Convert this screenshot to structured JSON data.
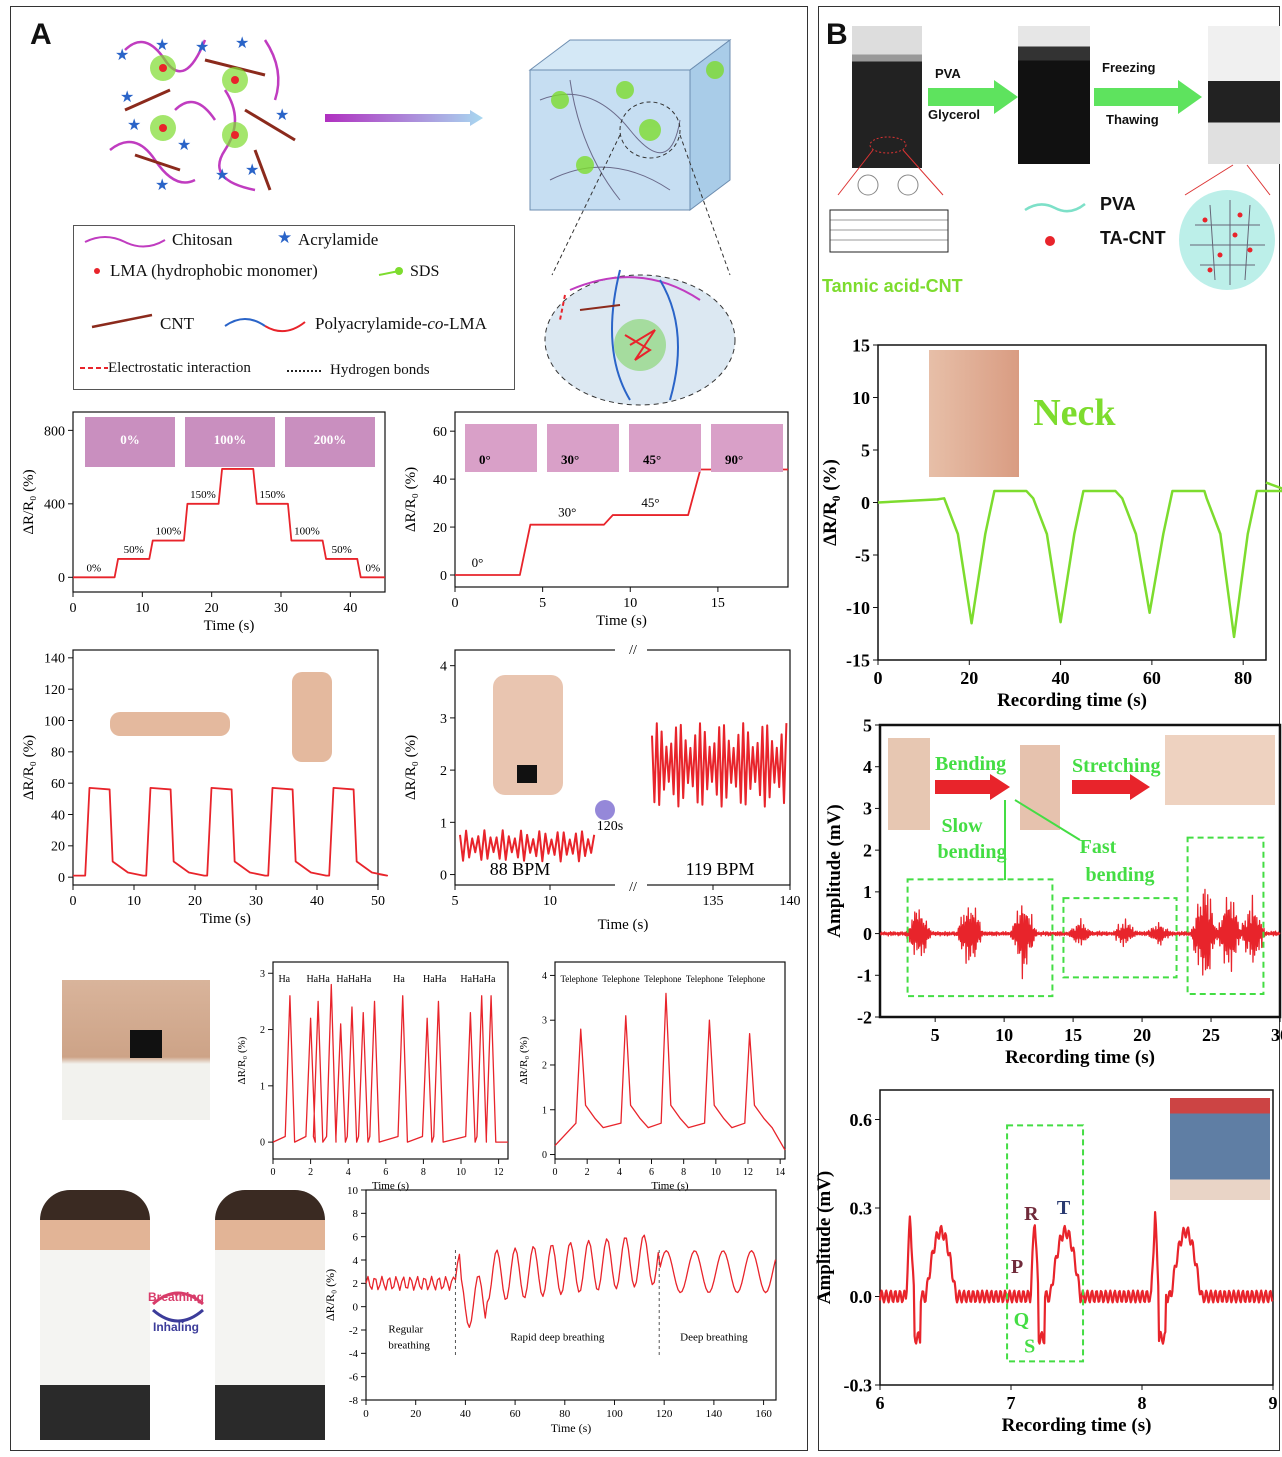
{
  "panelA": {
    "label": "A",
    "legend": {
      "chitosan": "Chitosan",
      "acrylamide": "Acrylamide",
      "lma": "LMA (hydrophobic monomer)",
      "sds": "SDS",
      "cnt": "CNT",
      "pam_lma_pre": "Polyacrylamide-",
      "pam_lma_co": "co",
      "pam_lma_post": "-LMA",
      "electrostatic": "Electrostatic interaction",
      "hbonds": "Hydrogen bonds"
    },
    "charts": {
      "strain": {
        "ylabel": "ΔR/R₀ (%)",
        "xlabel": "Time (s)",
        "xticks": [
          "0",
          "10",
          "20",
          "30",
          "40"
        ],
        "yticks": [
          "0",
          "400",
          "800"
        ],
        "insets": [
          "0%",
          "100%",
          "200%"
        ],
        "step_labels": [
          "0%",
          "50%",
          "100%",
          "150%",
          "200%",
          "150%",
          "100%",
          "50%",
          "0%"
        ],
        "steps": [
          {
            "t0": 0,
            "t1": 6,
            "v": 0
          },
          {
            "t0": 6.5,
            "t1": 11,
            "v": 100
          },
          {
            "t0": 11.5,
            "t1": 16,
            "v": 200
          },
          {
            "t0": 16.5,
            "t1": 21,
            "v": 400
          },
          {
            "t0": 21.5,
            "t1": 26,
            "v": 590
          },
          {
            "t0": 26.5,
            "t1": 31,
            "v": 400
          },
          {
            "t0": 31.5,
            "t1": 36,
            "v": 200
          },
          {
            "t0": 36.5,
            "t1": 41,
            "v": 100
          },
          {
            "t0": 41.5,
            "t1": 45,
            "v": 0
          }
        ],
        "xlim": [
          0,
          45
        ],
        "ylim": [
          -80,
          900
        ]
      },
      "finger": {
        "ylabel": "ΔR/R₀ (%)",
        "xlabel": "Time (s)",
        "xticks": [
          "0",
          "5",
          "10",
          "15"
        ],
        "yticks": [
          "0",
          "20",
          "40",
          "60"
        ],
        "insets": [
          "0°",
          "30°",
          "45°",
          "90°"
        ],
        "angle_labels": [
          "0°",
          "30°",
          "45°",
          "90°"
        ],
        "steps": [
          {
            "t0": 0,
            "t1": 3.7,
            "v": 0
          },
          {
            "t0": 4.3,
            "t1": 8.5,
            "v": 21
          },
          {
            "t0": 9,
            "t1": 13.3,
            "v": 25
          },
          {
            "t0": 14,
            "t1": 19,
            "v": 44
          }
        ],
        "xlim": [
          0,
          19
        ],
        "ylim": [
          -5,
          68
        ]
      },
      "elbow": {
        "ylabel": "ΔR/R₀ (%)",
        "xlabel": "Time (s)",
        "xticks": [
          "0",
          "10",
          "20",
          "30",
          "40",
          "50"
        ],
        "yticks": [
          "0",
          "20",
          "40",
          "60",
          "80",
          "100",
          "120",
          "140"
        ],
        "pulses": [
          2,
          12,
          22,
          32,
          42
        ],
        "pulse_height": 57,
        "xlim": [
          0,
          50
        ],
        "ylim": [
          -5,
          145
        ]
      },
      "pulse": {
        "ylabel": "ΔR/R₀ (%)",
        "xlabel": "Time (s)",
        "xticks": [
          "5",
          "10",
          "135",
          "140"
        ],
        "yticks": [
          "0",
          "1",
          "2",
          "3",
          "4"
        ],
        "bpm_left": "88 BPM",
        "bpm_right": "119 BPM",
        "gap_label": "120s",
        "left_level": 0.55,
        "left_amp": 0.3,
        "right_level": 2.1,
        "right_amp": 0.8,
        "ylim": [
          -0.2,
          4.3
        ]
      },
      "laugh": {
        "ylabel": "ΔR/R₀ (%)",
        "xlabel": "Time (s)",
        "xticks": [
          "0",
          "2",
          "4",
          "6",
          "8",
          "10",
          "12"
        ],
        "yticks": [
          "0",
          "1",
          "2",
          "3"
        ],
        "words": [
          "Ha",
          "HaHa",
          "HaHaHa",
          "Ha",
          "HaHa",
          "HaHaHa"
        ],
        "peaks": [
          {
            "t": 0.9,
            "v": 2.6
          },
          {
            "t": 2.0,
            "v": 2.2
          },
          {
            "t": 2.4,
            "v": 2.5
          },
          {
            "t": 3.1,
            "v": 2.8
          },
          {
            "t": 3.6,
            "v": 2.1
          },
          {
            "t": 4.2,
            "v": 2.4
          },
          {
            "t": 4.8,
            "v": 2.3
          },
          {
            "t": 5.4,
            "v": 2.5
          },
          {
            "t": 6.9,
            "v": 2.6
          },
          {
            "t": 8.2,
            "v": 2.2
          },
          {
            "t": 8.8,
            "v": 2.5
          },
          {
            "t": 10.5,
            "v": 2.3
          },
          {
            "t": 11.1,
            "v": 2.6
          },
          {
            "t": 11.6,
            "v": 2.6
          }
        ],
        "xlim": [
          0,
          12.5
        ],
        "ylim": [
          -0.3,
          3.2
        ]
      },
      "telephone": {
        "ylabel": "ΔR/R₀ (%)",
        "xlabel": "Time (s)",
        "xticks": [
          "0",
          "2",
          "4",
          "6",
          "8",
          "10",
          "12",
          "14"
        ],
        "yticks": [
          "0",
          "1",
          "2",
          "3",
          "4"
        ],
        "words": [
          "Telephone",
          "Telephone",
          "Telephone",
          "Telephone",
          "Telephone"
        ],
        "peaks": [
          {
            "t": 1.6,
            "v": 2.8
          },
          {
            "t": 4.4,
            "v": 3.1
          },
          {
            "t": 6.9,
            "v": 3.6
          },
          {
            "t": 9.6,
            "v": 3.0
          },
          {
            "t": 12.1,
            "v": 2.7
          }
        ],
        "xlim": [
          0,
          14.3
        ],
        "ylim": [
          -0.1,
          4.3
        ]
      },
      "breath": {
        "ylabel": "ΔR/R₀ (%)",
        "xlabel": "Time (s)",
        "xticks": [
          "0",
          "20",
          "40",
          "60",
          "80",
          "100",
          "120",
          "140",
          "160"
        ],
        "yticks": [
          "-8",
          "-6",
          "-4",
          "-2",
          "0",
          "2",
          "4",
          "6",
          "8",
          "10"
        ],
        "regions": [
          "Regular\nbreathing",
          "Rapid deep breathing",
          "Deep breathing"
        ],
        "dividers": [
          36,
          118
        ],
        "xlim": [
          0,
          165
        ],
        "ylim": [
          -8,
          10
        ]
      }
    },
    "breathing_labels": {
      "top": "Breathing",
      "bottom": "Inhaling"
    }
  },
  "panelB": {
    "label": "B",
    "process": {
      "step1_top": "PVA",
      "step1_bottom": "Glycerol",
      "step2_top": "Freezing",
      "step2_bottom": "Thawing"
    },
    "legend": {
      "pva": "PVA",
      "tacnt": "TA-CNT",
      "tannic": "Tannic acid-CNT"
    },
    "charts": {
      "neck": {
        "title": "Neck",
        "ylabel": "ΔR/R₀ (%)",
        "xlabel": "Recording time (s)",
        "xticks": [
          "0",
          "20",
          "40",
          "60",
          "80"
        ],
        "yticks": [
          "-15",
          "-10",
          "-5",
          "0",
          "5",
          "10",
          "15"
        ],
        "dips": [
          20.5,
          40,
          59.5,
          78
        ],
        "dip_depth": [
          -11.5,
          -11.4,
          -10.5,
          -12.8
        ],
        "xlim": [
          0,
          85
        ],
        "ylim": [
          -15,
          15
        ]
      },
      "emg": {
        "ylabel": "Amplitude (mV)",
        "xlabel": "Recording time (s)",
        "xticks": [
          "5",
          "10",
          "15",
          "20",
          "25",
          "30"
        ],
        "yticks": [
          "-2",
          "-1",
          "0",
          "1",
          "2",
          "3",
          "4",
          "5"
        ],
        "labels": {
          "bending": "Bending",
          "stretching": "Stretching",
          "slow": "Slow\nbending",
          "fast": "Fast\nbending"
        },
        "bursts": [
          {
            "t": 3.8,
            "a": 0.9
          },
          {
            "t": 7.5,
            "a": 1.1
          },
          {
            "t": 11.4,
            "a": 1.2
          },
          {
            "t": 15.5,
            "a": 0.45
          },
          {
            "t": 18.7,
            "a": 0.4
          },
          {
            "t": 21.2,
            "a": 0.35
          },
          {
            "t": 24.5,
            "a": 1.8
          },
          {
            "t": 26.3,
            "a": 1.2
          },
          {
            "t": 28.0,
            "a": 1.1
          }
        ],
        "xlim": [
          1,
          30
        ],
        "ylim": [
          -2,
          5
        ]
      },
      "ecg": {
        "ylabel": "Amplitude (mV)",
        "xlabel": "Recording time (s)",
        "xticks": [
          "6",
          "7",
          "8",
          "9"
        ],
        "yticks": [
          "-0.3",
          "0.0",
          "0.3",
          "0.6"
        ],
        "waves": {
          "P": "P",
          "Q": "Q",
          "R": "R",
          "S": "S",
          "T": "T"
        },
        "beats": [
          6.23,
          7.18,
          8.1
        ],
        "xlim": [
          6,
          9
        ],
        "ylim": [
          -0.3,
          0.7
        ]
      }
    }
  },
  "colors": {
    "red": "#e8242b",
    "green": "#7ddc2e",
    "dash_green": "#44dd44",
    "magenta": "#c03cc0",
    "blue": "#2a64c8",
    "brown": "#8b2a1c"
  }
}
